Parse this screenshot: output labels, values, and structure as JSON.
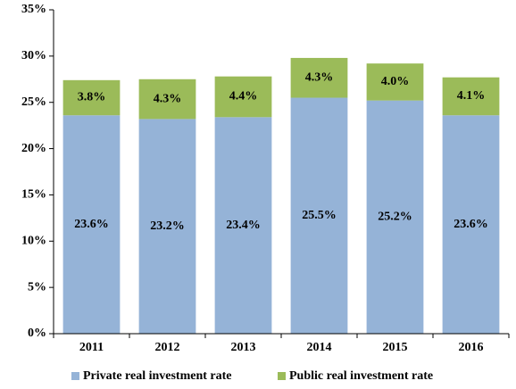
{
  "chart_data": {
    "type": "stacked_bar",
    "categories": [
      "2011",
      "2012",
      "2013",
      "2014",
      "2015",
      "2016"
    ],
    "series": [
      {
        "name": "Private real investment rate",
        "color": "#95b3d7",
        "values": [
          23.6,
          23.2,
          23.4,
          25.5,
          25.2,
          23.6
        ],
        "value_labels": [
          "23.6%",
          "23.2%",
          "23.4%",
          "25.5%",
          "25.2%",
          "23.6%"
        ]
      },
      {
        "name": "Public real investment rate",
        "color": "#9bbb59",
        "values": [
          3.8,
          4.3,
          4.4,
          4.3,
          4.0,
          4.1
        ],
        "value_labels": [
          "3.8%",
          "4.3%",
          "4.4%",
          "4.3%",
          "4.0%",
          "4.1%"
        ]
      }
    ],
    "ylim": [
      0,
      35
    ],
    "yticks": [
      {
        "value": 0,
        "label": "0%"
      },
      {
        "value": 5,
        "label": "5%"
      },
      {
        "value": 10,
        "label": "10%"
      },
      {
        "value": 15,
        "label": "15%"
      },
      {
        "value": 20,
        "label": "20%"
      },
      {
        "value": 25,
        "label": "25%"
      },
      {
        "value": 30,
        "label": "30%"
      },
      {
        "value": 35,
        "label": "35%"
      }
    ],
    "grid": false,
    "legend": "bottom"
  }
}
